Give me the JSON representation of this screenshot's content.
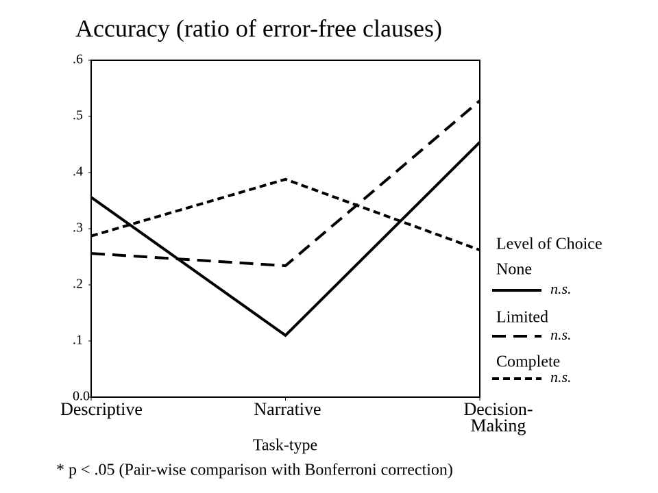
{
  "chart_data": {
    "type": "line",
    "title": "Accuracy (ratio of error-free clauses)",
    "x_label": "Task-type",
    "note": "* p < .05 (Pair-wise comparison with Bonferroni correction)",
    "categories": [
      "Descriptive",
      "Narrative",
      "Decision-\nMaking"
    ],
    "ylim": [
      0,
      0.6
    ],
    "yticks": [
      {
        "value": 0,
        "label": "0.0"
      },
      {
        "value": 0.1,
        "label": ".1"
      },
      {
        "value": 0.2,
        "label": ".2"
      },
      {
        "value": 0.3,
        "label": ".3"
      },
      {
        "value": 0.4,
        "label": ".4"
      },
      {
        "value": 0.5,
        "label": ".5"
      },
      {
        "value": 0.6,
        "label": ".6"
      }
    ],
    "legend_title": "Level of Choice",
    "legend": "right",
    "series": [
      {
        "name": "None",
        "color": "#000000",
        "dash": "solid",
        "note": "n.s.",
        "values": [
          0.356,
          0.11,
          0.454
        ]
      },
      {
        "name": "Limited",
        "color": "#000000",
        "dash": "long",
        "note": "n.s.",
        "values": [
          0.256,
          0.234,
          0.528
        ]
      },
      {
        "name": "Complete",
        "color": "#000000",
        "dash": "short",
        "note": "n.s.",
        "values": [
          0.287,
          0.388,
          0.262
        ]
      }
    ]
  }
}
